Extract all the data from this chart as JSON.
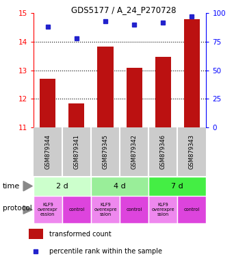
{
  "title": "GDS5177 / A_24_P270728",
  "samples": [
    "GSM879344",
    "GSM879341",
    "GSM879345",
    "GSM879342",
    "GSM879346",
    "GSM879343"
  ],
  "bar_values": [
    12.7,
    11.85,
    13.82,
    13.1,
    13.48,
    14.78
  ],
  "percentile_values": [
    88,
    78,
    93,
    90,
    92,
    97
  ],
  "ylim_left": [
    11,
    15
  ],
  "ylim_right": [
    0,
    100
  ],
  "yticks_left": [
    11,
    12,
    13,
    14,
    15
  ],
  "yticks_right": [
    0,
    25,
    50,
    75,
    100
  ],
  "bar_color": "#bb1111",
  "dot_color": "#2222cc",
  "time_labels": [
    "2 d",
    "4 d",
    "7 d"
  ],
  "time_colors": [
    "#ccffcc",
    "#99ee99",
    "#44ee44"
  ],
  "protocol_labels_kl": [
    "KLF9\noverexpr\nession",
    "KLF9\noverexpre\nssion",
    "KLF9\noverexpre\nssion"
  ],
  "protocol_color_klf": "#ee88ee",
  "protocol_color_ctrl": "#dd44dd",
  "background_color": "#ffffff",
  "label_bar": "transformed count",
  "label_dot": "percentile rank within the sample",
  "sample_bg": "#cccccc",
  "grid_yticks": [
    12,
    13,
    14
  ],
  "left_axis_color": "red",
  "right_axis_color": "blue"
}
